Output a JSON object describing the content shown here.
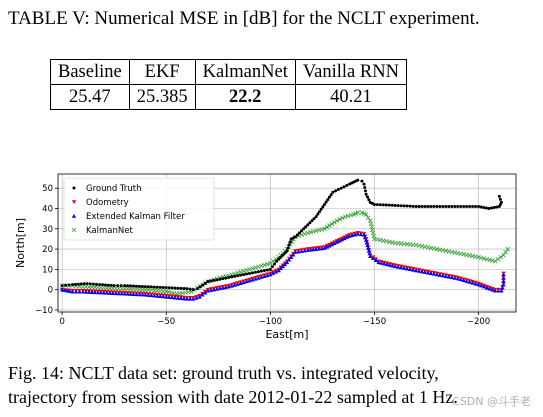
{
  "table": {
    "caption": "TABLE V: Numerical MSE in [dB] for the NCLT experiment.",
    "headers": [
      "Baseline",
      "EKF",
      "KalmanNet",
      "Vanilla RNN"
    ],
    "values": [
      "25.47",
      "25.385",
      "22.2",
      "40.21"
    ],
    "best_index": 2
  },
  "figure": {
    "caption_line1": "Fig. 14: NCLT data set: ground truth vs. integrated velocity,",
    "caption_line2": "trajectory from session with date 2012-01-22 sampled at 1 Hz.",
    "watermark": "CSDN @斗手老"
  },
  "chart_data": {
    "type": "scatter",
    "xlabel": "East[m]",
    "ylabel": "North[m]",
    "xlim": [
      2,
      -218
    ],
    "ylim": [
      -11,
      57
    ],
    "x_ticks": [
      0,
      -50,
      -100,
      -150,
      -200
    ],
    "x_tick_labels": [
      "0",
      "−50",
      "−100",
      "−150",
      "−200"
    ],
    "y_ticks": [
      -10,
      0,
      10,
      20,
      30,
      40,
      50
    ],
    "y_tick_labels": [
      "−10",
      "0",
      "10",
      "20",
      "30",
      "40",
      "50"
    ],
    "grid": true,
    "legend_position": "upper-left",
    "series": [
      {
        "name": "Ground Truth",
        "marker": "dot",
        "color": "#000000",
        "x": [
          0,
          -5,
          -12,
          -18,
          -25,
          -30,
          -40,
          -50,
          -60,
          -63,
          -65,
          -70,
          -80,
          -90,
          -100,
          -103,
          -108,
          -110,
          -112,
          -114,
          -118,
          -122,
          -126,
          -130,
          -134,
          -138,
          -140,
          -142,
          -144,
          -145,
          -146,
          -148,
          -150,
          -160,
          -170,
          -180,
          -190,
          -200,
          -205,
          -210,
          -211,
          -210
        ],
        "y": [
          2,
          2.5,
          3,
          2.5,
          2,
          2,
          1.5,
          1,
          0.5,
          0,
          0.5,
          4,
          6,
          8,
          10,
          14,
          19,
          25,
          26,
          28,
          32,
          36,
          42,
          48,
          50,
          52,
          53,
          54,
          53.5,
          52,
          47,
          43,
          42,
          41.5,
          41,
          41,
          41,
          41,
          40,
          41,
          43,
          46
        ]
      },
      {
        "name": "Odometry",
        "marker": "triangle-down",
        "color": "#ff0000",
        "x": [
          0,
          -5,
          -10,
          -20,
          -30,
          -40,
          -50,
          -60,
          -63,
          -66,
          -70,
          -80,
          -90,
          -100,
          -104,
          -108,
          -112,
          -118,
          -126,
          -132,
          -138,
          -142,
          -145,
          -146,
          -148,
          -152,
          -160,
          -170,
          -180,
          -190,
          -200,
          -208,
          -211,
          -212,
          -212
        ],
        "y": [
          0,
          -0.5,
          -0.5,
          -1,
          -1.5,
          -2,
          -3,
          -4,
          -4,
          -3,
          0,
          2,
          5,
          8,
          10,
          14,
          19,
          20,
          21,
          24,
          27,
          28,
          27.5,
          25,
          17,
          14,
          12,
          10,
          8,
          6,
          3,
          0,
          0,
          3,
          8
        ]
      },
      {
        "name": "Extended Kalman Filter",
        "marker": "triangle-up",
        "color": "#0000ff",
        "x": [
          0,
          -5,
          -10,
          -20,
          -30,
          -40,
          -50,
          -60,
          -63,
          -66,
          -70,
          -80,
          -90,
          -100,
          -104,
          -108,
          -112,
          -118,
          -126,
          -132,
          -138,
          -142,
          -145,
          -146,
          -148,
          -152,
          -160,
          -170,
          -180,
          -190,
          -200,
          -208,
          -211,
          -212,
          -212
        ],
        "y": [
          0,
          -1,
          -1,
          -1.5,
          -2,
          -2.5,
          -3.5,
          -4.5,
          -4.5,
          -3.5,
          -0.5,
          1.5,
          4.5,
          7.5,
          9.5,
          13.5,
          18.5,
          19.5,
          20.5,
          23.5,
          26.5,
          27.5,
          27,
          24.5,
          16.5,
          13.5,
          11.5,
          9.5,
          7.5,
          5.5,
          2.5,
          -0.5,
          -0.5,
          2.5,
          7.5
        ]
      },
      {
        "name": "KalmanNet",
        "marker": "x",
        "color": "#2ca02c",
        "x": [
          0,
          -5,
          -10,
          -20,
          -30,
          -40,
          -50,
          -55,
          -62,
          -65,
          -70,
          -80,
          -90,
          -100,
          -104,
          -108,
          -112,
          -118,
          -126,
          -132,
          -136,
          -140,
          -142,
          -144,
          -146,
          -148,
          -150,
          -160,
          -170,
          -180,
          -190,
          -200,
          -208,
          -212,
          -214
        ],
        "y": [
          2,
          2,
          1.5,
          1,
          0.5,
          0,
          -1,
          -2,
          -1,
          1,
          4,
          7,
          10,
          13,
          16,
          20,
          26,
          28,
          30,
          34,
          36,
          37,
          38,
          38,
          37,
          34,
          25,
          23,
          22,
          20,
          18,
          16,
          14,
          17,
          20
        ]
      }
    ]
  }
}
